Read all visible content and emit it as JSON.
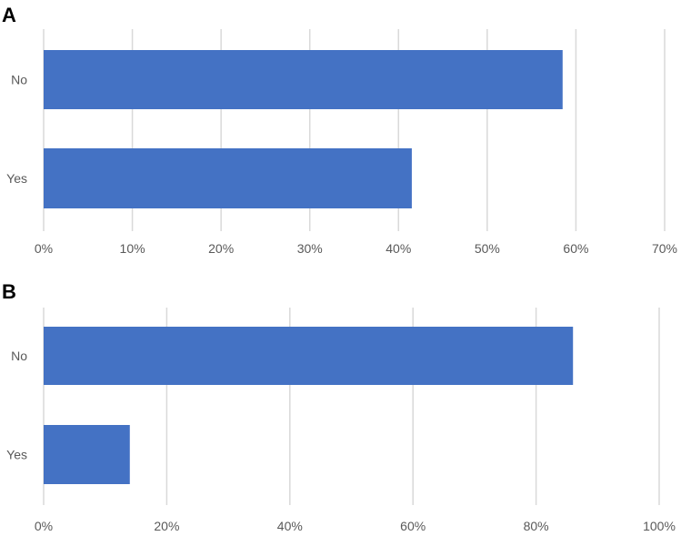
{
  "figure": {
    "panels": [
      "A",
      "B"
    ]
  },
  "colors": {
    "bar": "#4472c4",
    "grid": "#d9d9d9",
    "text": "#595959"
  },
  "chart_data": [
    {
      "type": "bar",
      "orientation": "horizontal",
      "panel": "A",
      "title": "",
      "xlabel": "",
      "ylabel": "",
      "categories": [
        "No",
        "Yes"
      ],
      "values": [
        58.5,
        41.5
      ],
      "value_unit": "%",
      "xlim": [
        0,
        70
      ],
      "x_ticks": [
        "0%",
        "10%",
        "20%",
        "30%",
        "40%",
        "50%",
        "60%",
        "70%"
      ],
      "grid": "vertical",
      "legend": "none"
    },
    {
      "type": "bar",
      "orientation": "horizontal",
      "panel": "B",
      "title": "",
      "xlabel": "",
      "ylabel": "",
      "categories": [
        "No",
        "Yes"
      ],
      "values": [
        86,
        14
      ],
      "value_unit": "%",
      "xlim": [
        0,
        100
      ],
      "x_ticks": [
        "0%",
        "20%",
        "40%",
        "60%",
        "80%",
        "100%"
      ],
      "grid": "vertical",
      "legend": "none"
    }
  ]
}
